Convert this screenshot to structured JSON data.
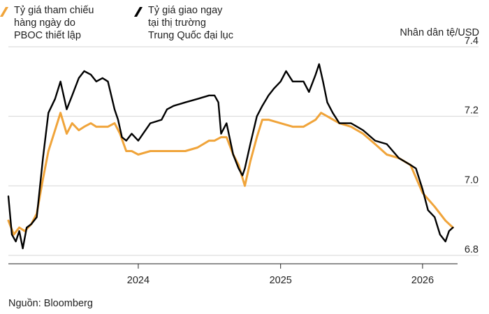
{
  "legend": {
    "items": [
      {
        "label": "Tỷ giá tham chiếu\nhàng ngày do\nPBOC thiết lập",
        "color": "#f0a43a"
      },
      {
        "label": "Tỷ giá giao ngay\ntại thị trường\nTrung Quốc đại lục",
        "color": "#000000"
      }
    ]
  },
  "unit_label": "Nhân dân tệ/USD",
  "source": "Nguồn: Bloomberg",
  "chart_data": {
    "type": "line",
    "title": "",
    "xlabel": "",
    "ylabel": "Nhân dân tệ/USD",
    "ylim": [
      6.76,
      7.4
    ],
    "yticks": [
      6.8,
      7.0,
      7.2,
      7.4
    ],
    "ytick_labels": [
      "6.8",
      "7.0",
      "7.2",
      "7.4"
    ],
    "xlim": [
      "2023-02-01",
      "2026-04-01"
    ],
    "xticks": [
      "2024-01-01",
      "2025-01-01",
      "2026-01-01"
    ],
    "xtick_labels": [
      "2024",
      "2025",
      "2026"
    ],
    "grid": "horizontal",
    "series": [
      {
        "name": "Tỷ giá tham chiếu hàng ngày do PBOC thiết lập",
        "color": "#f0a43a",
        "x": [
          "2023-02-01",
          "2023-02-15",
          "2023-03-01",
          "2023-03-15",
          "2023-04-01",
          "2023-04-15",
          "2023-05-01",
          "2023-05-15",
          "2023-06-01",
          "2023-06-15",
          "2023-07-01",
          "2023-07-15",
          "2023-08-01",
          "2023-08-15",
          "2023-09-01",
          "2023-09-15",
          "2023-10-01",
          "2023-10-15",
          "2023-11-01",
          "2023-11-15",
          "2023-12-01",
          "2023-12-15",
          "2024-01-01",
          "2024-02-01",
          "2024-03-01",
          "2024-04-01",
          "2024-05-01",
          "2024-06-01",
          "2024-07-01",
          "2024-07-15",
          "2024-08-01",
          "2024-08-15",
          "2024-09-01",
          "2024-09-15",
          "2024-10-01",
          "2024-10-15",
          "2024-11-01",
          "2024-11-15",
          "2024-12-01",
          "2025-01-01",
          "2025-02-01",
          "2025-03-01",
          "2025-04-01",
          "2025-04-15",
          "2025-05-01",
          "2025-06-01",
          "2025-07-01",
          "2025-08-01",
          "2025-09-01",
          "2025-10-01",
          "2025-11-01",
          "2025-12-01",
          "2026-01-01",
          "2026-02-01",
          "2026-03-01",
          "2026-03-20"
        ],
        "values": [
          6.9,
          6.86,
          6.88,
          6.87,
          6.89,
          6.92,
          7.02,
          7.1,
          7.16,
          7.21,
          7.15,
          7.18,
          7.16,
          7.17,
          7.18,
          7.17,
          7.17,
          7.17,
          7.18,
          7.15,
          7.1,
          7.1,
          7.09,
          7.1,
          7.1,
          7.1,
          7.1,
          7.11,
          7.13,
          7.13,
          7.14,
          7.14,
          7.09,
          7.06,
          7.0,
          7.07,
          7.14,
          7.19,
          7.19,
          7.18,
          7.17,
          7.17,
          7.19,
          7.21,
          7.2,
          7.18,
          7.17,
          7.15,
          7.12,
          7.09,
          7.08,
          7.06,
          6.98,
          6.94,
          6.9,
          6.88
        ]
      },
      {
        "name": "Tỷ giá giao ngay tại thị trường Trung Quốc đại lục",
        "color": "#000000",
        "x": [
          "2023-02-01",
          "2023-02-10",
          "2023-02-20",
          "2023-03-01",
          "2023-03-10",
          "2023-03-20",
          "2023-04-01",
          "2023-04-15",
          "2023-05-01",
          "2023-05-15",
          "2023-06-01",
          "2023-06-15",
          "2023-07-01",
          "2023-07-15",
          "2023-08-01",
          "2023-08-15",
          "2023-09-01",
          "2023-09-15",
          "2023-10-01",
          "2023-10-15",
          "2023-11-01",
          "2023-11-10",
          "2023-11-20",
          "2023-12-01",
          "2023-12-15",
          "2024-01-01",
          "2024-02-01",
          "2024-03-01",
          "2024-03-15",
          "2024-04-01",
          "2024-05-01",
          "2024-06-01",
          "2024-07-01",
          "2024-07-15",
          "2024-07-25",
          "2024-08-01",
          "2024-08-15",
          "2024-09-01",
          "2024-09-15",
          "2024-09-25",
          "2024-10-01",
          "2024-10-15",
          "2024-11-01",
          "2024-11-15",
          "2024-12-01",
          "2024-12-15",
          "2025-01-01",
          "2025-01-15",
          "2025-02-01",
          "2025-03-01",
          "2025-03-15",
          "2025-04-01",
          "2025-04-10",
          "2025-04-20",
          "2025-05-01",
          "2025-05-15",
          "2025-06-01",
          "2025-07-01",
          "2025-08-01",
          "2025-09-01",
          "2025-10-01",
          "2025-11-01",
          "2025-12-01",
          "2025-12-15",
          "2026-01-01",
          "2026-01-15",
          "2026-02-01",
          "2026-02-15",
          "2026-03-01",
          "2026-03-10",
          "2026-03-20"
        ],
        "values": [
          6.97,
          6.86,
          6.84,
          6.87,
          6.82,
          6.88,
          6.89,
          6.91,
          7.08,
          7.21,
          7.25,
          7.3,
          7.22,
          7.26,
          7.31,
          7.33,
          7.32,
          7.3,
          7.31,
          7.3,
          7.22,
          7.19,
          7.14,
          7.13,
          7.15,
          7.13,
          7.18,
          7.19,
          7.22,
          7.23,
          7.24,
          7.25,
          7.26,
          7.26,
          7.24,
          7.15,
          7.18,
          7.09,
          7.05,
          7.03,
          7.05,
          7.12,
          7.2,
          7.23,
          7.26,
          7.28,
          7.3,
          7.33,
          7.3,
          7.3,
          7.27,
          7.32,
          7.35,
          7.3,
          7.24,
          7.21,
          7.18,
          7.18,
          7.16,
          7.13,
          7.12,
          7.08,
          7.06,
          7.05,
          6.99,
          6.93,
          6.91,
          6.86,
          6.84,
          6.87,
          6.88
        ]
      }
    ]
  }
}
